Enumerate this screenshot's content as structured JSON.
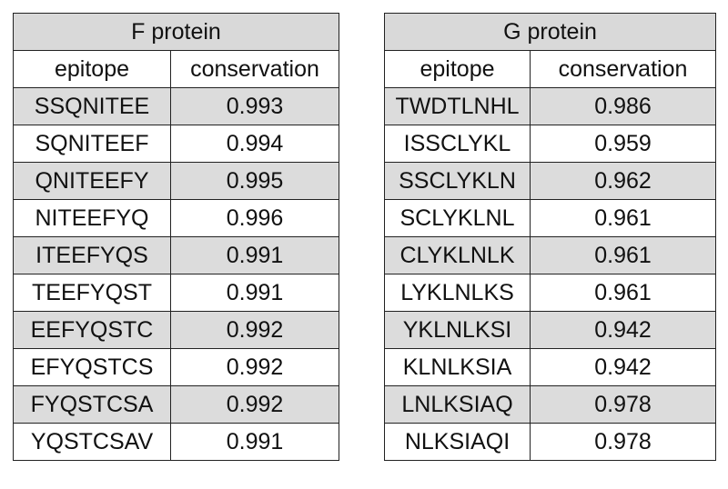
{
  "f_table": {
    "title": "F protein",
    "headers": {
      "epitope": "epitope",
      "conservation": "conservation"
    },
    "rows": [
      {
        "epitope": "SSQNITEE",
        "conservation": "0.993"
      },
      {
        "epitope": "SQNITEEF",
        "conservation": "0.994"
      },
      {
        "epitope": "QNITEEFY",
        "conservation": "0.995"
      },
      {
        "epitope": "NITEEFYQ",
        "conservation": "0.996"
      },
      {
        "epitope": "ITEEFYQS",
        "conservation": "0.991"
      },
      {
        "epitope": "TEEFYQST",
        "conservation": "0.991"
      },
      {
        "epitope": "EEFYQSTC",
        "conservation": "0.992"
      },
      {
        "epitope": "EFYQSTCS",
        "conservation": "0.992"
      },
      {
        "epitope": "FYQSTCSA",
        "conservation": "0.992"
      },
      {
        "epitope": "YQSTCSAV",
        "conservation": "0.991"
      }
    ]
  },
  "g_table": {
    "title": "G protein",
    "headers": {
      "epitope": "epitope",
      "conservation": "conservation"
    },
    "rows": [
      {
        "epitope": "TWDTLNHL",
        "conservation": "0.986"
      },
      {
        "epitope": "ISSCLYKL",
        "conservation": "0.959"
      },
      {
        "epitope": "SSCLYKLN",
        "conservation": "0.962"
      },
      {
        "epitope": "SCLYKLNL",
        "conservation": "0.961"
      },
      {
        "epitope": "CLYKLNLK",
        "conservation": "0.961"
      },
      {
        "epitope": "LYKLNLKS",
        "conservation": "0.961"
      },
      {
        "epitope": "YKLNLKSI",
        "conservation": "0.942"
      },
      {
        "epitope": "KLNLKSIA",
        "conservation": "0.942"
      },
      {
        "epitope": "LNLKSIAQ",
        "conservation": "0.978"
      },
      {
        "epitope": "NLKSIAQI",
        "conservation": "0.978"
      }
    ]
  },
  "colors": {
    "title_bg": "#d9d9d9",
    "shaded_row_bg": "#dcdcdc",
    "border": "#222222"
  }
}
